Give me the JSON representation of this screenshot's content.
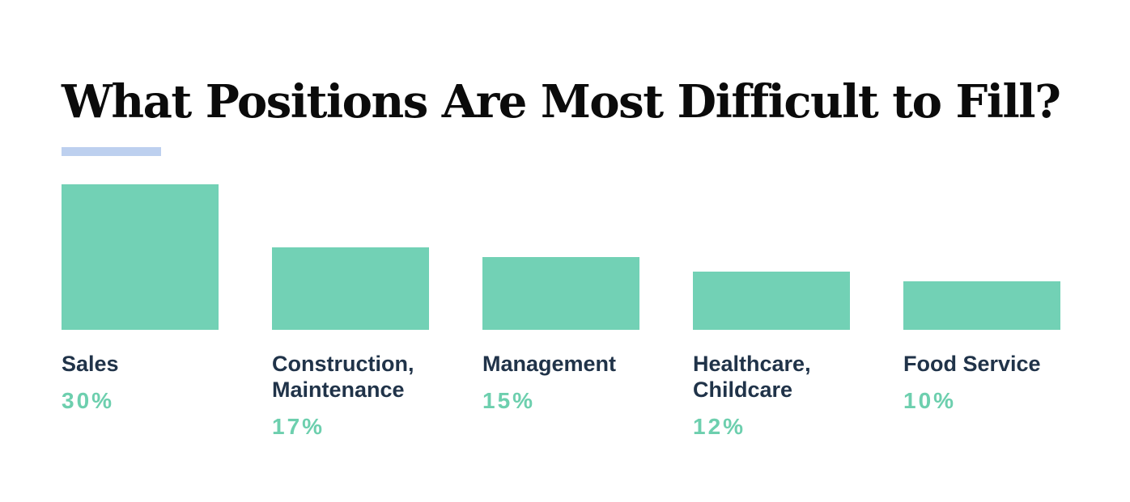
{
  "page": {
    "background": "#ffffff"
  },
  "header": {
    "title": "What Positions Are Most Difficult to Fill?",
    "title_color": "#0b0b0b",
    "underline_color": "#bdd0ef"
  },
  "chart_data": {
    "type": "bar",
    "title": "What Positions Are Most Difficult to Fill?",
    "orientation": "vertical",
    "categories": [
      "Sales",
      "Construction, Maintenance",
      "Management",
      "Healthcare, Childcare",
      "Food Service"
    ],
    "values": [
      30,
      17,
      15,
      12,
      10
    ],
    "value_labels": [
      "30%",
      "17%",
      "15%",
      "12%",
      "10%"
    ],
    "unit": "%",
    "ylim": [
      0,
      30
    ],
    "gridlines": false,
    "legend": "none",
    "axes_shown": false,
    "bar_color": "#72d1b5",
    "label_color": "#203349",
    "value_color": "#6dcfae"
  }
}
